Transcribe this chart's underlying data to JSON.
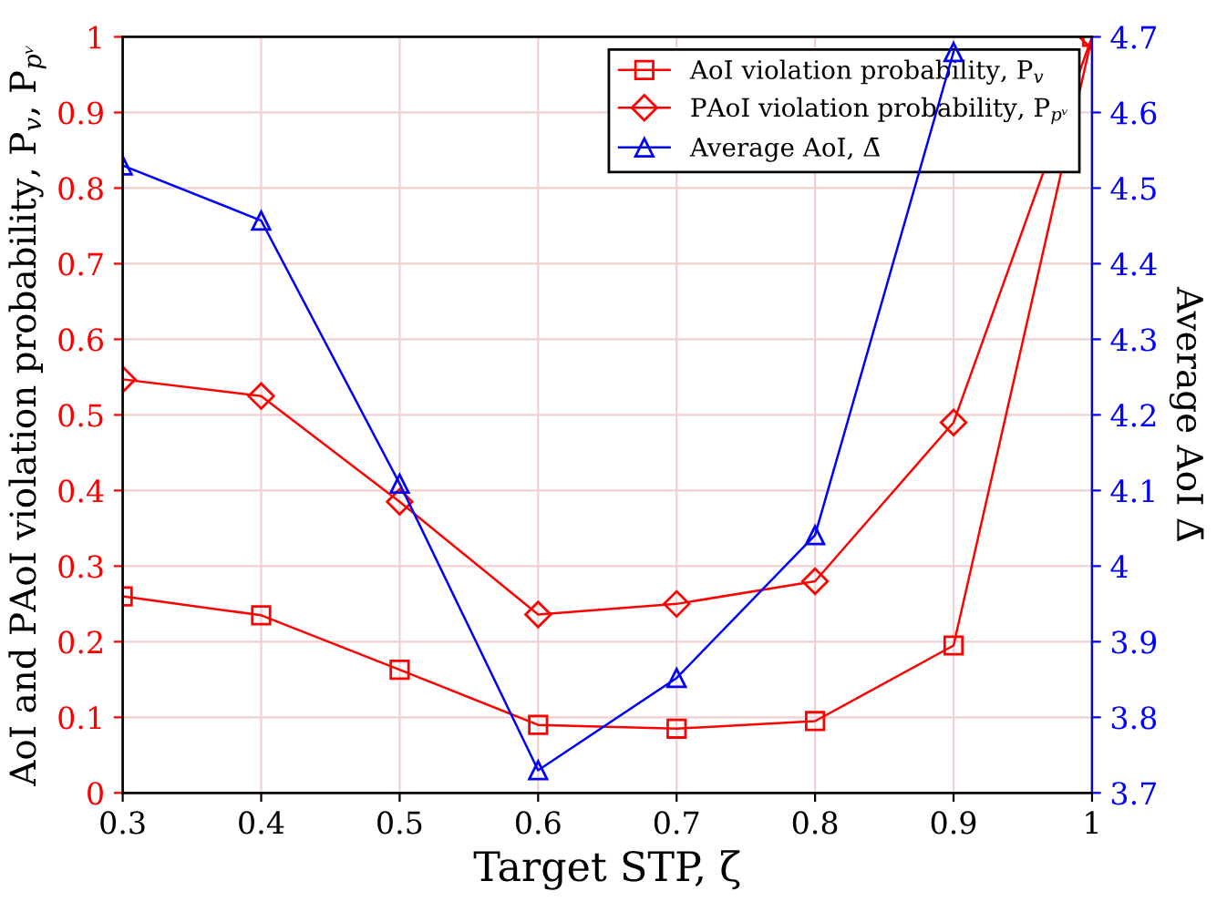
{
  "chart_data": {
    "type": "line",
    "xlabel": "Target STP, ζ",
    "ylabel": "AoI and PAoI violation probability, P$_{v}$, P$_{pᵛ}$",
    "y2label": "Average AoI Δ̄",
    "x": [
      0.3,
      0.4,
      0.5,
      0.6,
      0.7,
      0.8,
      0.9,
      1.0
    ],
    "series": [
      {
        "name": "AoI violation probability, P$_{v}$",
        "color": "#ff0000",
        "marker": "square",
        "values": [
          0.26,
          0.235,
          0.163,
          0.09,
          0.085,
          0.095,
          0.195,
          1.0
        ]
      },
      {
        "name": "PAoI violation probability, P$_{pᵛ}$",
        "color": "#ff0000",
        "marker": "diamond",
        "values": [
          0.547,
          0.525,
          0.385,
          0.236,
          0.25,
          0.28,
          0.49,
          1.0
        ]
      },
      {
        "name": "Average AoI, Δ̄",
        "color": "#0000ff",
        "marker": "triangle",
        "axis": "y2",
        "values": [
          4.53,
          4.457,
          4.109,
          3.73,
          3.852,
          4.041,
          4.68,
          null
        ]
      }
    ],
    "xlim": [
      0.3,
      1
    ],
    "xticks": [
      0.3,
      0.4,
      0.5,
      0.6,
      0.7,
      0.8,
      0.9,
      1
    ],
    "ylim": [
      0,
      1
    ],
    "yticks": [
      0,
      0.1,
      0.2,
      0.3,
      0.4,
      0.5,
      0.6,
      0.7,
      0.8,
      0.9,
      1
    ],
    "y2lim": [
      3.7,
      4.7
    ],
    "y2ticks": [
      3.7,
      3.8,
      3.9,
      4,
      4.1,
      4.2,
      4.3,
      4.4,
      4.5,
      4.6,
      4.7
    ],
    "grid": true,
    "legend": "top right",
    "line_style": "solid"
  }
}
